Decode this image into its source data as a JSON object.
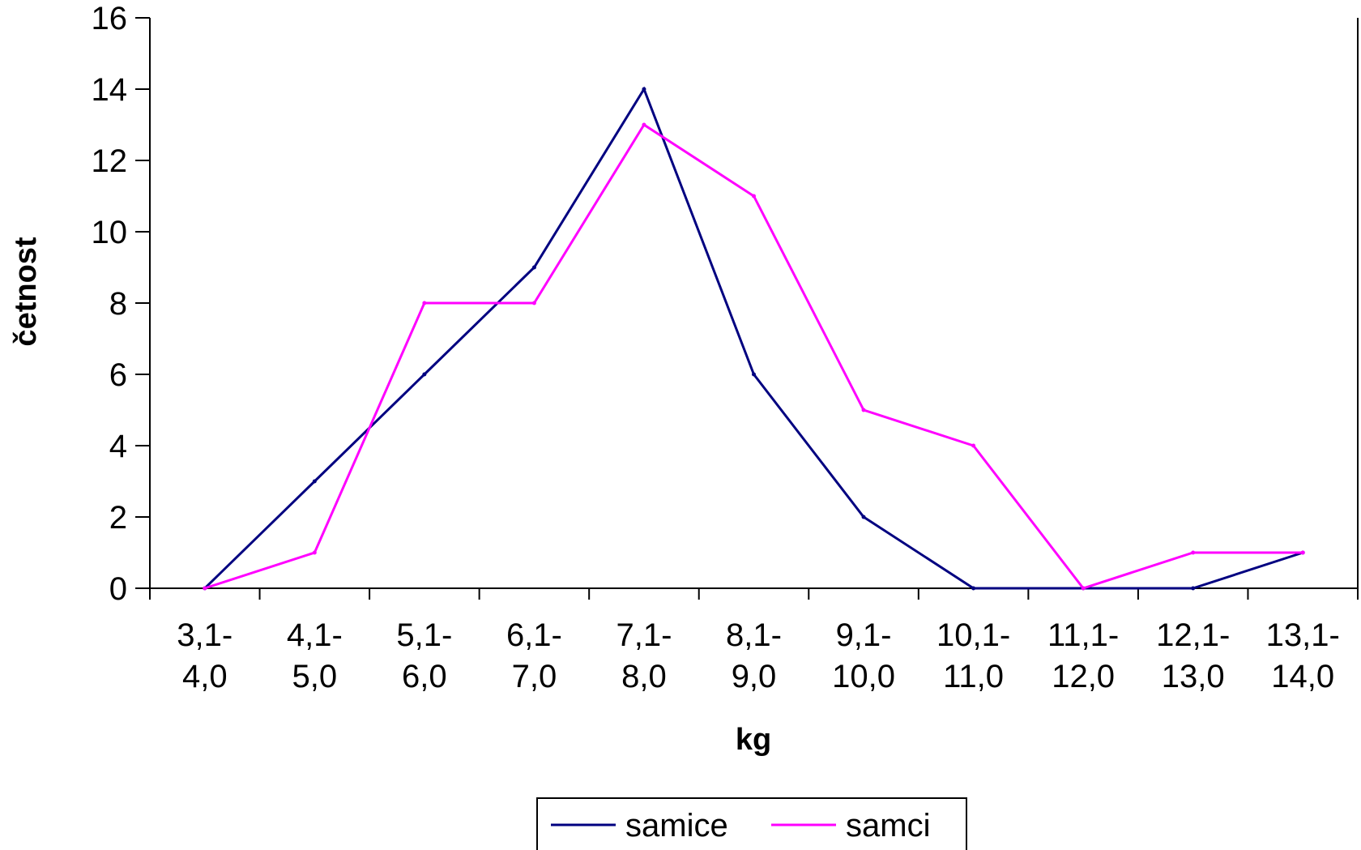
{
  "chart_data": {
    "type": "line",
    "xlabel": "kg",
    "ylabel": "četnost",
    "ylim": [
      0,
      16
    ],
    "yticks": [
      0,
      2,
      4,
      6,
      8,
      10,
      12,
      14,
      16
    ],
    "categories": [
      [
        "3,1-",
        "4,0"
      ],
      [
        "4,1-",
        "5,0"
      ],
      [
        "5,1-",
        "6,0"
      ],
      [
        "6,1-",
        "7,0"
      ],
      [
        "7,1-",
        "8,0"
      ],
      [
        "8,1-",
        "9,0"
      ],
      [
        "9,1-",
        "10,0"
      ],
      [
        "10,1-",
        "11,0"
      ],
      [
        "11,1-",
        "12,0"
      ],
      [
        "12,1-",
        "13,0"
      ],
      [
        "13,1-",
        "14,0"
      ]
    ],
    "series": [
      {
        "name": "samice",
        "color": "#000080",
        "values": [
          0,
          3,
          6,
          9,
          14,
          6,
          2,
          0,
          0,
          0,
          1
        ]
      },
      {
        "name": "samci",
        "color": "#FF00FF",
        "values": [
          0,
          1,
          8,
          8,
          13,
          11,
          5,
          4,
          0,
          1,
          1
        ]
      }
    ],
    "grid": false,
    "legend_position": "bottom"
  }
}
